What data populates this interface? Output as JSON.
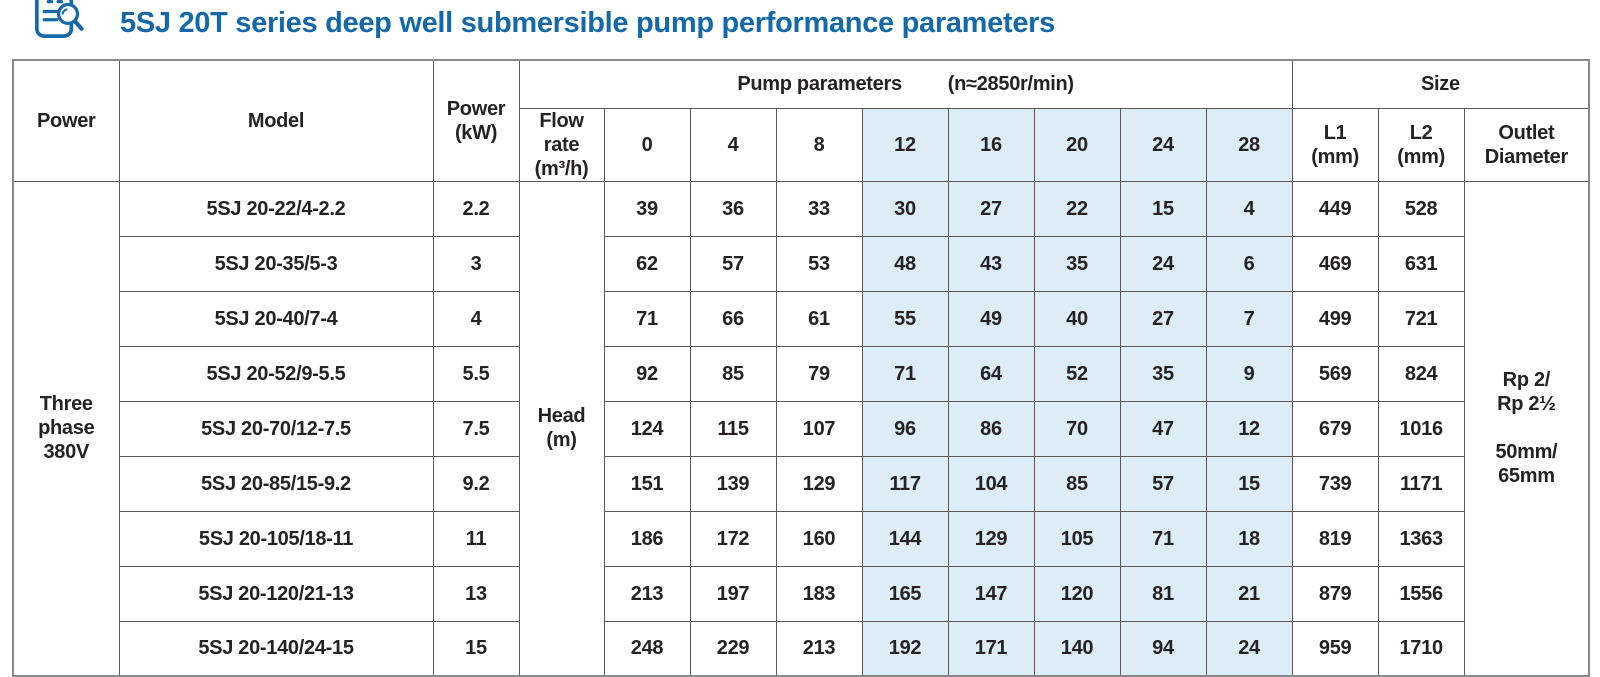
{
  "title": "5SJ 20T series deep well submersible pump performance parameters",
  "icon": {
    "name": "document-search-icon"
  },
  "colors": {
    "accent_blue": "#1568a9",
    "highlight_blue": "#dcedf8",
    "border_gray": "#59595b",
    "text_dark": "#262223"
  },
  "table": {
    "header": {
      "power": "Power",
      "model": "Model",
      "power_kw": "Power\n(kW)",
      "pump_params_label": "Pump parameters",
      "pump_params_rpm": "(n≈2850r/min)",
      "size": "Size",
      "flow_rate": "Flow rate\n(m³/h)",
      "flow_values": [
        "0",
        "4",
        "8",
        "12",
        "16",
        "20",
        "24",
        "28"
      ],
      "l1": "L1\n(mm)",
      "l2": "L2\n(mm)",
      "outlet": "Outlet\nDiameter"
    },
    "power_group": "Three\nphase\n380V",
    "head_label": "Head\n(m)",
    "outlet_value": "Rp 2/\nRp 2½\n\n50mm/\n65mm",
    "highlight_from_index": 3,
    "rows": [
      {
        "model": "5SJ 20-22/4-2.2",
        "kw": "2.2",
        "head": [
          39,
          36,
          33,
          30,
          27,
          22,
          15,
          4
        ],
        "l1": 449,
        "l2": 528
      },
      {
        "model": "5SJ 20-35/5-3",
        "kw": "3",
        "head": [
          62,
          57,
          53,
          48,
          43,
          35,
          24,
          6
        ],
        "l1": 469,
        "l2": 631
      },
      {
        "model": "5SJ 20-40/7-4",
        "kw": "4",
        "head": [
          71,
          66,
          61,
          55,
          49,
          40,
          27,
          7
        ],
        "l1": 499,
        "l2": 721
      },
      {
        "model": "5SJ 20-52/9-5.5",
        "kw": "5.5",
        "head": [
          92,
          85,
          79,
          71,
          64,
          52,
          35,
          9
        ],
        "l1": 569,
        "l2": 824
      },
      {
        "model": "5SJ 20-70/12-7.5",
        "kw": "7.5",
        "head": [
          124,
          115,
          107,
          96,
          86,
          70,
          47,
          12
        ],
        "l1": 679,
        "l2": 1016
      },
      {
        "model": "5SJ 20-85/15-9.2",
        "kw": "9.2",
        "head": [
          151,
          139,
          129,
          117,
          104,
          85,
          57,
          15
        ],
        "l1": 739,
        "l2": 1171
      },
      {
        "model": "5SJ 20-105/18-11",
        "kw": "11",
        "head": [
          186,
          172,
          160,
          144,
          129,
          105,
          71,
          18
        ],
        "l1": 819,
        "l2": 1363
      },
      {
        "model": "5SJ 20-120/21-13",
        "kw": "13",
        "head": [
          213,
          197,
          183,
          165,
          147,
          120,
          81,
          21
        ],
        "l1": 879,
        "l2": 1556
      },
      {
        "model": "5SJ 20-140/24-15",
        "kw": "15",
        "head": [
          248,
          229,
          213,
          192,
          171,
          140,
          94,
          24
        ],
        "l1": 959,
        "l2": 1710
      }
    ]
  }
}
